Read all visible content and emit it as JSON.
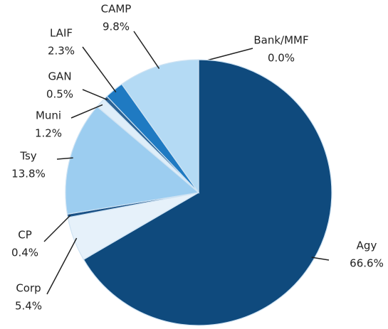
{
  "chart_data": {
    "type": "pie",
    "categories": [
      "Bank/MMF",
      "Agy",
      "Corp",
      "CP",
      "Tsy",
      "Muni",
      "GAN",
      "LAIF",
      "CAMP"
    ],
    "values": [
      0.0,
      66.6,
      5.4,
      0.4,
      13.8,
      1.2,
      0.5,
      2.3,
      9.8
    ],
    "value_labels": [
      "0.0%",
      "66.6%",
      "5.4%",
      "0.4%",
      "13.8%",
      "1.2%",
      "0.5%",
      "2.3%",
      "9.8%"
    ],
    "colors": [
      "#0d3f6e",
      "#0f4a7d",
      "#e6f1fa",
      "#1a5186",
      "#9ccdf0",
      "#dfeef9",
      "#2c6395",
      "#1f7ac2",
      "#b4daf4"
    ]
  }
}
